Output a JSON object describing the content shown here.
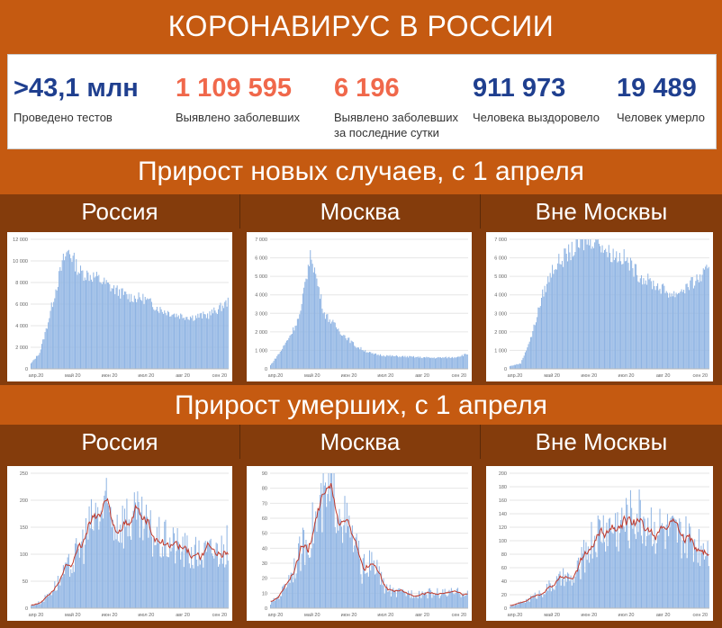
{
  "title": "КОРОНАВИРУС В РОССИИ",
  "stats": [
    {
      "value": ">43,1 млн",
      "label": "Проведено тестов",
      "color": "#1f3f8f"
    },
    {
      "value": "1 109 595",
      "label": "Выявлено заболевших",
      "color": "#f0684b"
    },
    {
      "value": "6 196",
      "label": "Выявлено заболевших",
      "label2": "за последние сутки",
      "color": "#f0684b"
    },
    {
      "value": "911 973",
      "label": "Человека выздоровело",
      "color": "#1f3f8f"
    },
    {
      "value": "19 489",
      "label": "Человек умерло",
      "color": "#1f3f8f"
    }
  ],
  "sections": {
    "cases": "Прирост новых случаев, с 1 апреля",
    "deaths": "Прирост умерших, с 1 апреля"
  },
  "regions": [
    "Россия",
    "Москва",
    "Вне Москвы"
  ],
  "colors": {
    "bar": "#8fb4e3",
    "bar_edge": "#5b8fd1",
    "line": "#c0392b"
  },
  "chart_data": [
    {
      "id": "cases-russia",
      "type": "bar",
      "ylim": [
        0,
        12000
      ],
      "yticks": [
        "0",
        "2 000",
        "4 000",
        "6 000",
        "8 000",
        "10 000",
        "12 000"
      ],
      "xticks": [
        "апр.20",
        "май 20",
        "июн 20",
        "июл 20",
        "авг 20",
        "сен 20"
      ],
      "keypoints": [
        [
          0,
          500
        ],
        [
          8,
          1500
        ],
        [
          15,
          4000
        ],
        [
          22,
          7000
        ],
        [
          30,
          10000
        ],
        [
          35,
          11000
        ],
        [
          45,
          9000
        ],
        [
          60,
          8500
        ],
        [
          75,
          7500
        ],
        [
          90,
          6700
        ],
        [
          105,
          6500
        ],
        [
          120,
          5500
        ],
        [
          135,
          5000
        ],
        [
          150,
          4800
        ],
        [
          165,
          5000
        ],
        [
          175,
          5600
        ],
        [
          183,
          6200
        ]
      ]
    },
    {
      "id": "cases-moscow",
      "type": "bar",
      "ylim": [
        0,
        7000
      ],
      "yticks": [
        "0",
        "1 000",
        "2 000",
        "3 000",
        "4 000",
        "5 000",
        "6 000",
        "7 000"
      ],
      "xticks": [
        "апр.20",
        "май 20",
        "июн 20",
        "июл 20",
        "авг 20",
        "сен 20"
      ],
      "keypoints": [
        [
          0,
          200
        ],
        [
          10,
          1000
        ],
        [
          20,
          2000
        ],
        [
          28,
          3000
        ],
        [
          33,
          5000
        ],
        [
          38,
          6200
        ],
        [
          43,
          4800
        ],
        [
          50,
          3000
        ],
        [
          65,
          2000
        ],
        [
          80,
          1200
        ],
        [
          95,
          800
        ],
        [
          110,
          700
        ],
        [
          130,
          650
        ],
        [
          150,
          600
        ],
        [
          170,
          620
        ],
        [
          183,
          800
        ]
      ]
    },
    {
      "id": "cases-outside",
      "type": "bar",
      "ylim": [
        0,
        7000
      ],
      "yticks": [
        "0",
        "1 000",
        "2 000",
        "3 000",
        "4 000",
        "5 000",
        "6 000",
        "7 000"
      ],
      "xticks": [
        "апр.20",
        "май 20",
        "июн 20",
        "июл 20",
        "авг 20",
        "сен 20"
      ],
      "keypoints": [
        [
          0,
          150
        ],
        [
          10,
          300
        ],
        [
          20,
          1800
        ],
        [
          30,
          4000
        ],
        [
          40,
          5500
        ],
        [
          55,
          6300
        ],
        [
          70,
          6900
        ],
        [
          80,
          7100
        ],
        [
          90,
          6300
        ],
        [
          105,
          6000
        ],
        [
          120,
          5000
        ],
        [
          135,
          4500
        ],
        [
          150,
          4000
        ],
        [
          165,
          4500
        ],
        [
          183,
          5300
        ]
      ]
    },
    {
      "id": "deaths-russia",
      "type": "bar",
      "ylim": [
        0,
        250
      ],
      "yticks": [
        "0",
        "50",
        "100",
        "150",
        "200",
        "250"
      ],
      "xticks": [
        "апр 20",
        "май 20",
        "июн 20",
        "июл 20",
        "авг 20",
        "сен 20"
      ],
      "keypoints": [
        [
          0,
          5
        ],
        [
          10,
          12
        ],
        [
          20,
          35
        ],
        [
          30,
          60
        ],
        [
          40,
          90
        ],
        [
          50,
          130
        ],
        [
          60,
          170
        ],
        [
          70,
          180
        ],
        [
          80,
          160
        ],
        [
          90,
          165
        ],
        [
          100,
          160
        ],
        [
          110,
          140
        ],
        [
          120,
          125
        ],
        [
          130,
          120
        ],
        [
          140,
          110
        ],
        [
          150,
          100
        ],
        [
          160,
          100
        ],
        [
          170,
          105
        ],
        [
          183,
          115
        ]
      ],
      "line": true
    },
    {
      "id": "deaths-moscow",
      "type": "bar",
      "ylim": [
        0,
        90
      ],
      "yticks": [
        "0",
        "10",
        "20",
        "30",
        "40",
        "50",
        "60",
        "70",
        "80",
        "90"
      ],
      "xticks": [
        "апр 20",
        "май 20",
        "июн 20",
        "июл 20",
        "авг 20",
        "сен 20"
      ],
      "keypoints": [
        [
          0,
          3
        ],
        [
          10,
          10
        ],
        [
          20,
          25
        ],
        [
          30,
          40
        ],
        [
          40,
          55
        ],
        [
          50,
          70
        ],
        [
          55,
          73
        ],
        [
          60,
          75
        ],
        [
          65,
          70
        ],
        [
          70,
          55
        ],
        [
          80,
          40
        ],
        [
          85,
          25
        ],
        [
          90,
          30
        ],
        [
          95,
          28
        ],
        [
          100,
          25
        ],
        [
          105,
          15
        ],
        [
          115,
          10
        ],
        [
          130,
          10
        ],
        [
          150,
          10
        ],
        [
          170,
          10
        ],
        [
          183,
          11
        ]
      ],
      "line": true
    },
    {
      "id": "deaths-outside",
      "type": "bar",
      "ylim": [
        0,
        200
      ],
      "yticks": [
        "0",
        "20",
        "40",
        "60",
        "80",
        "100",
        "120",
        "140",
        "160",
        "180",
        "200"
      ],
      "xticks": [
        "апр.20",
        "май 20",
        "июн 20",
        "июл 20",
        "авг 20",
        "сен 20"
      ],
      "keypoints": [
        [
          0,
          3
        ],
        [
          10,
          8
        ],
        [
          20,
          15
        ],
        [
          30,
          25
        ],
        [
          40,
          35
        ],
        [
          50,
          45
        ],
        [
          58,
          40
        ],
        [
          65,
          65
        ],
        [
          75,
          100
        ],
        [
          85,
          115
        ],
        [
          95,
          120
        ],
        [
          105,
          125
        ],
        [
          115,
          140
        ],
        [
          125,
          130
        ],
        [
          135,
          120
        ],
        [
          145,
          110
        ],
        [
          155,
          105
        ],
        [
          165,
          100
        ],
        [
          175,
          95
        ],
        [
          183,
          95
        ]
      ],
      "line": true
    }
  ]
}
